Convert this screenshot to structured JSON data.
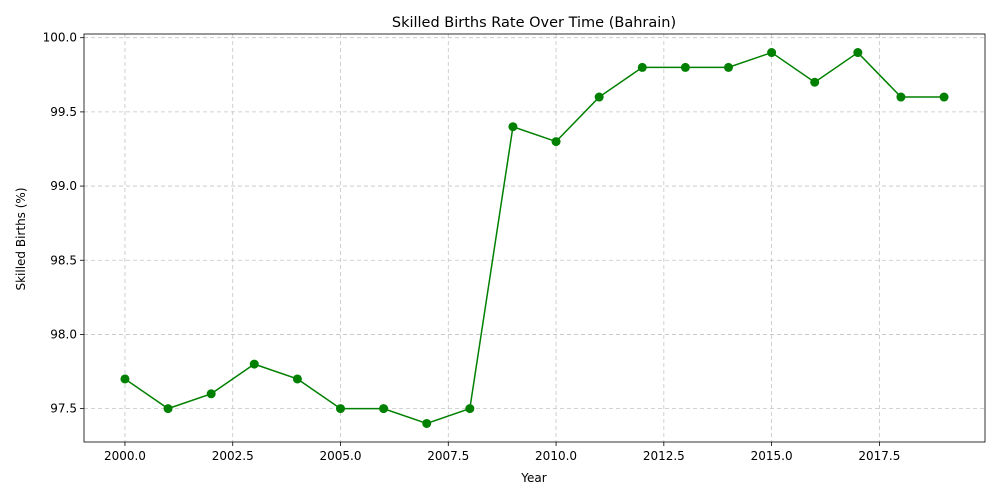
{
  "chart_data": {
    "type": "line",
    "title": "Skilled Births Rate Over Time (Bahrain)",
    "xlabel": "Year",
    "ylabel": "Skilled Births (%)",
    "xlim": [
      1999.05,
      2019.95
    ],
    "ylim": [
      97.275,
      100.025
    ],
    "x_ticks": [
      2000.0,
      2002.5,
      2005.0,
      2007.5,
      2010.0,
      2012.5,
      2015.0,
      2017.5
    ],
    "x_tick_labels": [
      "2000.0",
      "2002.5",
      "2005.0",
      "2007.5",
      "2010.0",
      "2012.5",
      "2015.0",
      "2017.5"
    ],
    "y_ticks": [
      97.5,
      98.0,
      98.5,
      99.0,
      99.5,
      100.0
    ],
    "y_tick_labels": [
      "97.5",
      "98.0",
      "98.5",
      "99.0",
      "99.5",
      "100.0"
    ],
    "grid": true,
    "color": "#008000",
    "series": [
      {
        "x": [
          2000,
          2001,
          2002,
          2003,
          2004,
          2005,
          2006,
          2007,
          2008,
          2009,
          2010,
          2011,
          2012,
          2013,
          2014,
          2015,
          2016,
          2017,
          2018,
          2019
        ],
        "values": [
          97.7,
          97.5,
          97.6,
          97.8,
          97.7,
          97.5,
          97.5,
          97.4,
          97.5,
          99.4,
          99.3,
          99.6,
          99.8,
          99.8,
          99.8,
          99.9,
          99.7,
          99.9,
          99.6,
          99.6
        ]
      }
    ]
  }
}
